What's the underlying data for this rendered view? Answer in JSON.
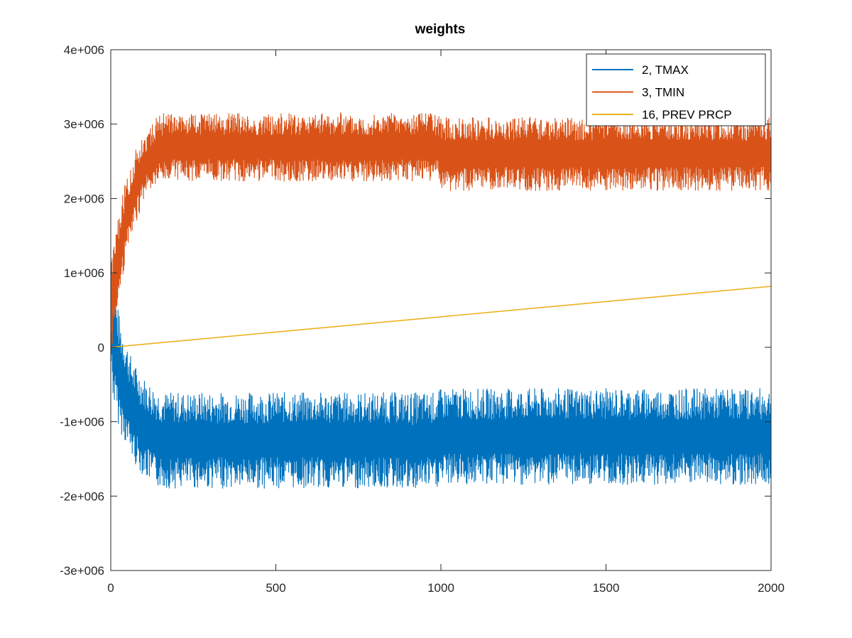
{
  "chart_data": {
    "type": "line",
    "title": "weights",
    "xlabel": "",
    "ylabel": "",
    "xlim": [
      0,
      2000
    ],
    "ylim": [
      -3000000,
      4000000
    ],
    "x_ticks": [
      0,
      500,
      1000,
      1500,
      2000
    ],
    "x_tick_labels": [
      "0",
      "500",
      "1000",
      "1500",
      "2000"
    ],
    "y_ticks": [
      -3000000,
      -2000000,
      -1000000,
      0,
      1000000,
      2000000,
      3000000,
      4000000
    ],
    "y_tick_labels": [
      "-3e+006",
      "-2e+006",
      "-1e+006",
      "0",
      "1e+006",
      "2e+006",
      "3e+006",
      "4e+006"
    ],
    "grid": false,
    "legend_position": "top-right",
    "x_step": 10,
    "series": [
      {
        "name": "2, TMAX",
        "color": "#0072BD",
        "values": [
          0,
          -500000,
          -400000,
          -600000,
          -550000,
          -650000,
          -700000,
          -750000,
          -800000,
          -820000,
          -850000,
          -880000,
          -900000,
          -950000,
          -980000,
          -1000000,
          -1030000,
          -1060000,
          -1100000,
          -1130000,
          -1150000,
          -1180000,
          -1200000,
          -1230000,
          -1250000,
          -1280000,
          -1300000,
          -1320000,
          -1330000,
          -1340000,
          -1350000,
          -1360000,
          -1370000,
          -1380000,
          -1390000,
          -1400000,
          -1410000,
          -1420000,
          -1430000,
          -1440000,
          -1450000,
          -1460000,
          -1470000,
          -1480000,
          -1490000,
          -1500000,
          -1500000,
          -1500000,
          -1500000,
          -1500000,
          -1500000,
          -1500000,
          -1500000,
          -1500000,
          -1500000,
          -1500000,
          -1500000,
          -1500000,
          -1500000,
          -1500000,
          -1500000,
          -1500000,
          -1500000,
          -1500000,
          -1500000,
          -1500000,
          -1500000,
          -1500000,
          -1500000,
          -1500000,
          -1500000,
          -1500000,
          -1500000,
          -1500000,
          -1500000,
          -1500000,
          -1500000,
          -1500000,
          -1500000,
          -1500000,
          -1500000,
          -1500000,
          -1500000,
          -1500000,
          -1500000,
          -1500000,
          -1500000,
          -1500000,
          -1500000,
          -1500000,
          -1500000,
          -1500000,
          -1500000,
          -1500000,
          -1500000,
          -1500000,
          -1500000,
          -1500000,
          -1500000,
          -1500000,
          -1500000,
          -1500000,
          -1500000,
          -1500000,
          -1500000,
          -1500000,
          -1500000,
          -1500000,
          -1500000,
          -1500000,
          -1500000,
          -1500000,
          -1500000,
          -1500000,
          -1500000,
          -1500000,
          -1500000,
          -1500000,
          -1500000,
          -1500000,
          -1500000,
          -1500000,
          -1500000,
          -1500000,
          -1500000,
          -1500000,
          -1500000,
          -1500000,
          -1500000,
          -1500000,
          -1500000,
          -1500000,
          -1500000,
          -1500000,
          -1500000,
          -1500000,
          -1500000,
          -1500000,
          -1500000,
          -1500000,
          -1500000,
          -1500000,
          -1500000,
          -1500000,
          -1500000,
          -1500000,
          -1500000,
          -1500000,
          -1500000,
          -1500000,
          -1500000,
          -1500000,
          -1500000,
          -1500000,
          -1500000,
          -1500000,
          -1500000,
          -1500000,
          -1500000,
          -1500000,
          -1500000,
          -1500000,
          -1500000,
          -1500000,
          -1500000,
          -1500000,
          -1500000,
          -1500000,
          -1500000,
          -1500000,
          -1500000,
          -1500000,
          -1500000,
          -1500000,
          -1500000,
          -1500000,
          -1500000,
          -1500000,
          -1500000,
          -1500000,
          -1500000,
          -1500000,
          -1450000,
          -1500000,
          -1500000,
          -1500000,
          -1500000,
          -1500000,
          -1500000,
          -1500000,
          -1500000,
          -1500000,
          -1500000,
          -1500000,
          -1500000,
          -1500000,
          -1500000,
          -1500000,
          -1500000,
          -1500000,
          -1500000,
          -1500000,
          -1500000
        ],
        "envelope": {
          "upper": [
            1400000,
            800000,
            580000,
            350000,
            200000,
            50000,
            -100000,
            -200000,
            -280000,
            -340000,
            -400000,
            -440000,
            -480000,
            -520000,
            -550000,
            -580000,
            -600000,
            -600000,
            -600000,
            -600000,
            -600000,
            -600000,
            -600000,
            -600000,
            -600000,
            -600000,
            -600000,
            -600000,
            -600000,
            -600000,
            -600000,
            -600000,
            -600000,
            -600000,
            -600000,
            -600000,
            -600000,
            -600000,
            -600000,
            -600000,
            -600000,
            -600000,
            -600000,
            -600000,
            -600000,
            -600000,
            -600000,
            -600000,
            -600000,
            -600000,
            -600000,
            -600000,
            -600000,
            -600000,
            -600000,
            -600000,
            -600000,
            -600000,
            -600000,
            -600000,
            -600000,
            -600000,
            -600000,
            -600000,
            -600000,
            -600000,
            -600000,
            -600000,
            -600000,
            -600000,
            -600000,
            -600000,
            -600000,
            -600000,
            -600000,
            -600000,
            -600000,
            -600000,
            -600000,
            -600000,
            -600000,
            -600000,
            -600000,
            -600000,
            -600000,
            -600000,
            -600000,
            -600000,
            -600000,
            -600000,
            -600000,
            -600000,
            -600000,
            -600000,
            -600000,
            -600000,
            -600000,
            -600000,
            -600000,
            -600000,
            -550000
          ],
          "lower": [
            -400000,
            -800000,
            -1000000,
            -1150000,
            -1250000,
            -1350000,
            -1450000,
            -1550000,
            -1620000,
            -1680000,
            -1730000,
            -1780000,
            -1820000,
            -1860000,
            -1880000,
            -1900000,
            -1900000,
            -1900000,
            -1900000,
            -1900000,
            -1900000,
            -1900000,
            -1900000,
            -1900000,
            -1900000,
            -1900000,
            -1900000,
            -1900000,
            -1900000,
            -1900000,
            -1900000,
            -1900000,
            -1900000,
            -1900000,
            -1900000,
            -1900000,
            -1900000,
            -1900000,
            -1900000,
            -1900000,
            -1900000,
            -1900000,
            -1900000,
            -1900000,
            -1900000,
            -1900000,
            -1900000,
            -1900000,
            -1900000,
            -1900000,
            -1900000,
            -1900000,
            -1900000,
            -1900000,
            -1900000,
            -1900000,
            -1900000,
            -1900000,
            -1900000,
            -1900000,
            -1900000,
            -1900000,
            -1900000,
            -1900000,
            -1900000,
            -1900000,
            -1900000,
            -1900000,
            -1900000,
            -1900000,
            -1900000,
            -1900000,
            -1900000,
            -1900000,
            -1900000,
            -1900000,
            -1900000,
            -1900000,
            -1900000,
            -1900000,
            -1900000,
            -1900000,
            -1900000,
            -1900000,
            -1900000,
            -1900000,
            -1900000,
            -1900000,
            -1900000,
            -1900000,
            -1950000,
            -2000000,
            -1950000,
            -1900000,
            -1900000,
            -1900000,
            -1900000,
            -1900000,
            -1900000,
            -1900000,
            -1850000
          ]
        }
      },
      {
        "name": "3, TMIN",
        "color": "#D95319",
        "envelope": {
          "upper": [
            1300000,
            1400000,
            1700000,
            1950000,
            2150000,
            2300000,
            2450000,
            2600000,
            2700000,
            2800000,
            2870000,
            2930000,
            2980000,
            3050000,
            3100000,
            3130000,
            3150000,
            3150000,
            3150000,
            3150000,
            3150000,
            3150000,
            3150000,
            3150000,
            3150000,
            3150000,
            3150000,
            3150000,
            3150000,
            3150000,
            3150000,
            3150000,
            3150000,
            3150000,
            3150000,
            3150000,
            3150000,
            3150000,
            3150000,
            3150000,
            3150000,
            3150000,
            3150000,
            3150000,
            3150000,
            3150000,
            3150000,
            3150000,
            3150000,
            3150000,
            3150000,
            3150000,
            3150000,
            3150000,
            3150000,
            3150000,
            3150000,
            3150000,
            3150000,
            3150000,
            3150000,
            3150000,
            3150000,
            3150000,
            3150000,
            3150000,
            3150000,
            3150000,
            3150000,
            3200000,
            3150000,
            3150000,
            3150000,
            3150000,
            3150000,
            3150000,
            3150000,
            3150000,
            3150000,
            3150000,
            3150000,
            3150000,
            3150000,
            3150000,
            3150000,
            3150000,
            3150000,
            3150000,
            3150000,
            3150000,
            3150000,
            3150000,
            3150000,
            3150000,
            3150000,
            3150000,
            3150000,
            3150000,
            3150000,
            3150000,
            3100000
          ],
          "lower": [
            -300000,
            200000,
            500000,
            800000,
            1050000,
            1250000,
            1400000,
            1550000,
            1700000,
            1830000,
            1930000,
            2030000,
            2100000,
            2150000,
            2200000,
            2220000,
            2230000,
            2230000,
            2230000,
            2230000,
            2230000,
            2230000,
            2230000,
            2230000,
            2230000,
            2230000,
            2230000,
            2230000,
            2230000,
            2230000,
            2230000,
            2230000,
            2230000,
            2230000,
            2230000,
            2230000,
            2230000,
            2230000,
            2230000,
            2230000,
            2230000,
            2230000,
            2230000,
            2230000,
            2230000,
            2230000,
            2230000,
            2230000,
            2230000,
            2230000,
            2230000,
            2230000,
            2230000,
            2230000,
            2230000,
            2230000,
            2230000,
            2230000,
            2230000,
            2230000,
            2230000,
            2230000,
            2230000,
            2230000,
            2230000,
            2230000,
            2230000,
            2230000,
            2230000,
            2230000,
            2230000,
            2230000,
            2230000,
            2230000,
            2230000,
            2230000,
            2230000,
            2230000,
            2230000,
            2230000,
            2230000,
            2230000,
            2230000,
            2230000,
            2230000,
            2230000,
            2230000,
            2230000,
            2230000,
            2230000,
            2230000,
            2230000,
            2230000,
            2230000,
            2230000,
            2230000,
            2230000,
            2230000,
            2230000,
            2230000,
            2100000
          ]
        }
      },
      {
        "name": "16, PREV PRCP",
        "color": "#EDB120",
        "x": [
          0,
          2000
        ],
        "values": [
          0,
          820000
        ]
      }
    ]
  }
}
